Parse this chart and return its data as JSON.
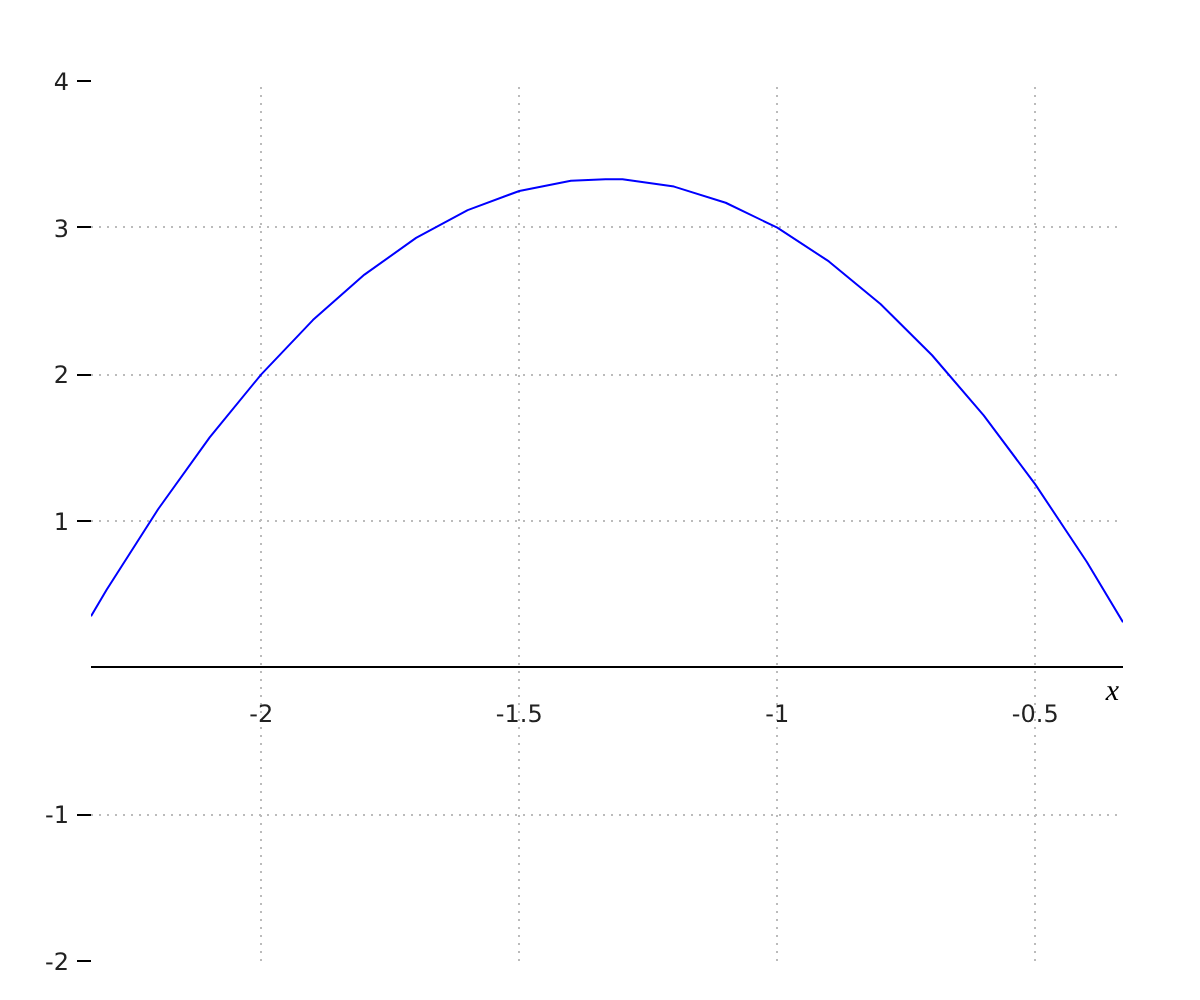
{
  "chart_data": {
    "type": "line",
    "xlabel": "x",
    "x": [
      -2.33,
      -2.3,
      -2.2,
      -2.1,
      -2.0,
      -1.9,
      -1.8,
      -1.7,
      -1.6,
      -1.5,
      -1.4,
      -1.333,
      -1.3,
      -1.2,
      -1.1,
      -1.0,
      -0.9,
      -0.8,
      -0.7,
      -0.6,
      -0.5,
      -0.4,
      -0.33
    ],
    "series": [
      {
        "color": "#0000ff",
        "values": [
          0.35,
          0.53,
          1.08,
          1.57,
          2.0,
          2.37,
          2.68,
          2.93,
          3.12,
          3.25,
          3.32,
          3.33,
          3.33,
          3.28,
          3.17,
          3.0,
          2.77,
          2.48,
          2.13,
          1.72,
          1.25,
          0.72,
          0.31
        ]
      }
    ],
    "xlim": [
      -2.33,
      -0.33
    ],
    "ylim": [
      -2,
      4
    ],
    "xticks": [
      -2,
      -1.5,
      -1,
      -0.5
    ],
    "yticks": [
      -2,
      -1,
      1,
      2,
      3,
      4
    ],
    "grid": true,
    "line_style": "solid"
  }
}
